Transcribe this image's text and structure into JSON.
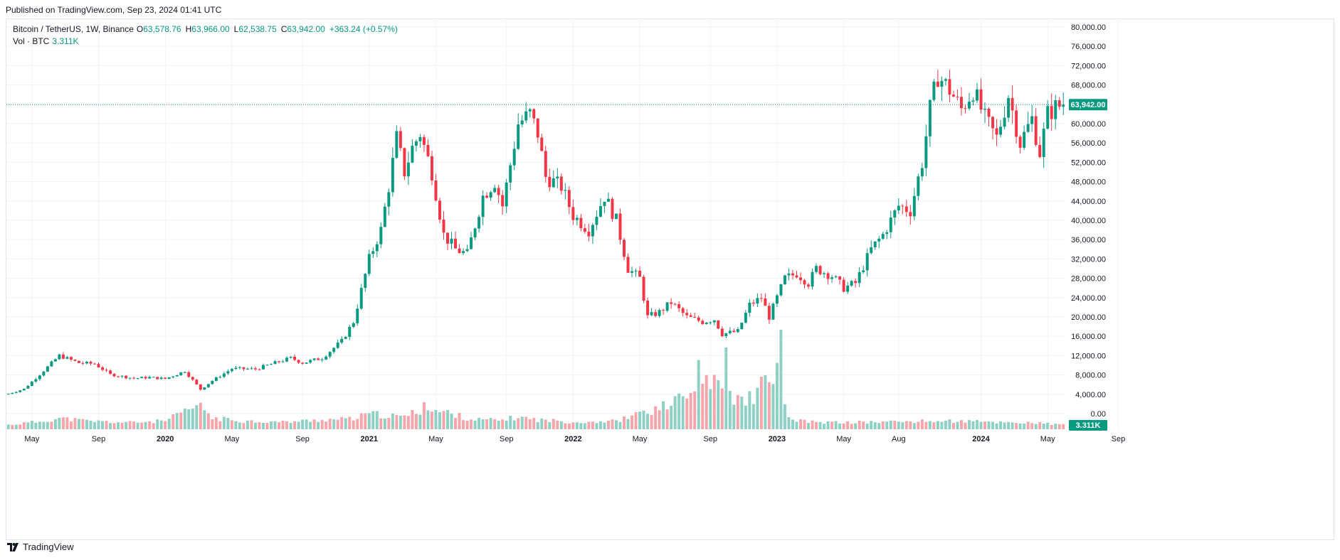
{
  "header": {
    "published": "Published on TradingView.com, Sep 23, 2024 01:41 UTC"
  },
  "legend": {
    "symbol": "Bitcoin / TetherUS, 1W, Binance",
    "open_label": "O",
    "open": "63,578.76",
    "high_label": "H",
    "high": "63,966.00",
    "low_label": "L",
    "low": "62,538.75",
    "close_label": "C",
    "close": "63,942.00",
    "change": "+363.24 (+0.57%)",
    "vol_label": "Vol · BTC",
    "vol_value": "3.311K"
  },
  "footer": {
    "brand": "TradingView"
  },
  "colors": {
    "up": "#089981",
    "down": "#f23645",
    "vol_up": "#8ed1c4",
    "vol_down": "#f6a5ab",
    "grid": "#f0f3fa",
    "last_price": "#089981"
  },
  "chart_data": {
    "type": "candlestick",
    "title": "Bitcoin / TetherUS, 1W, Binance",
    "last_price": 63942,
    "last_price_label": "63,942.00",
    "last_volume_label": "3.311K",
    "ylim": [
      0,
      82000
    ],
    "y_ticks": [
      0,
      4000,
      8000,
      12000,
      16000,
      20000,
      24000,
      28000,
      32000,
      36000,
      40000,
      44000,
      48000,
      52000,
      56000,
      60000,
      64000,
      68000,
      72000,
      76000,
      80000
    ],
    "y_tick_labels": [
      "0.00",
      "4,000.00",
      "8,000.00",
      "12,000.00",
      "16,000.00",
      "20,000.00",
      "24,000.00",
      "28,000.00",
      "32,000.00",
      "36,000.00",
      "40,000.00",
      "44,000.00",
      "48,000.00",
      "52,000.00",
      "56,000.00",
      "60,000.00",
      "64,000.00",
      "68,000.00",
      "72,000.00",
      "76,000.00",
      "80,000.00"
    ],
    "x_ticks": [
      {
        "label": "May",
        "week": 6,
        "year": false
      },
      {
        "label": "Sep",
        "week": 23,
        "year": false
      },
      {
        "label": "2020",
        "week": 40,
        "year": true
      },
      {
        "label": "May",
        "week": 57,
        "year": false
      },
      {
        "label": "Sep",
        "week": 75,
        "year": false
      },
      {
        "label": "2021",
        "week": 92,
        "year": true
      },
      {
        "label": "May",
        "week": 109,
        "year": false
      },
      {
        "label": "Sep",
        "week": 127,
        "year": false
      },
      {
        "label": "2022",
        "week": 144,
        "year": true
      },
      {
        "label": "May",
        "week": 161,
        "year": false
      },
      {
        "label": "Sep",
        "week": 179,
        "year": false
      },
      {
        "label": "2023",
        "week": 196,
        "year": true
      },
      {
        "label": "May",
        "week": 213,
        "year": false
      },
      {
        "label": "Aug",
        "week": 227,
        "year": false
      },
      {
        "label": "2024",
        "week": 248,
        "year": true
      },
      {
        "label": "May",
        "week": 265,
        "year": false
      },
      {
        "label": "Sep",
        "week": 283,
        "year": false
      }
    ],
    "anchors": [
      [
        0,
        4100
      ],
      [
        4,
        5100
      ],
      [
        8,
        8100
      ],
      [
        13,
        12000
      ],
      [
        18,
        10500
      ],
      [
        22,
        10300
      ],
      [
        26,
        8100
      ],
      [
        32,
        7300
      ],
      [
        36,
        7500
      ],
      [
        40,
        7200
      ],
      [
        45,
        8800
      ],
      [
        49,
        5000
      ],
      [
        52,
        6800
      ],
      [
        57,
        9300
      ],
      [
        63,
        9200
      ],
      [
        68,
        10500
      ],
      [
        72,
        11500
      ],
      [
        75,
        10500
      ],
      [
        80,
        11500
      ],
      [
        85,
        15000
      ],
      [
        88,
        19000
      ],
      [
        92,
        32000
      ],
      [
        95,
        38000
      ],
      [
        97,
        47000
      ],
      [
        99,
        57000
      ],
      [
        101,
        50000
      ],
      [
        103,
        55000
      ],
      [
        105,
        58000
      ],
      [
        108,
        50000
      ],
      [
        111,
        37000
      ],
      [
        114,
        34000
      ],
      [
        117,
        33000
      ],
      [
        121,
        45000
      ],
      [
        124,
        48000
      ],
      [
        126,
        43000
      ],
      [
        130,
        60000
      ],
      [
        133,
        62000
      ],
      [
        135,
        58000
      ],
      [
        137,
        49000
      ],
      [
        141,
        47000
      ],
      [
        144,
        41000
      ],
      [
        148,
        38000
      ],
      [
        152,
        45000
      ],
      [
        155,
        40000
      ],
      [
        158,
        30000
      ],
      [
        161,
        28000
      ],
      [
        163,
        20000
      ],
      [
        166,
        21000
      ],
      [
        169,
        23000
      ],
      [
        173,
        20000
      ],
      [
        177,
        19000
      ],
      [
        180,
        19500
      ],
      [
        182,
        16500
      ],
      [
        186,
        17000
      ],
      [
        189,
        22500
      ],
      [
        192,
        24000
      ],
      [
        194,
        20000
      ],
      [
        198,
        28000
      ],
      [
        201,
        29000
      ],
      [
        204,
        27000
      ],
      [
        206,
        30000
      ],
      [
        210,
        28500
      ],
      [
        213,
        26000
      ],
      [
        216,
        27000
      ],
      [
        220,
        34000
      ],
      [
        223,
        37000
      ],
      [
        227,
        43000
      ],
      [
        230,
        42000
      ],
      [
        233,
        52000
      ],
      [
        235,
        63000
      ],
      [
        237,
        70000
      ],
      [
        240,
        67000
      ],
      [
        243,
        63000
      ],
      [
        246,
        67000
      ],
      [
        249,
        61000
      ],
      [
        252,
        57000
      ],
      [
        255,
        66000
      ],
      [
        258,
        56000
      ],
      [
        261,
        61000
      ],
      [
        263,
        54000
      ],
      [
        265,
        62000
      ],
      [
        267,
        63400
      ],
      [
        269,
        63942
      ]
    ],
    "volume_anchors": [
      [
        0,
        800
      ],
      [
        8,
        1400
      ],
      [
        13,
        2000
      ],
      [
        20,
        1500
      ],
      [
        30,
        1200
      ],
      [
        40,
        1500
      ],
      [
        49,
        4500
      ],
      [
        52,
        2000
      ],
      [
        60,
        1500
      ],
      [
        70,
        1300
      ],
      [
        80,
        1700
      ],
      [
        88,
        1900
      ],
      [
        92,
        2800
      ],
      [
        100,
        2200
      ],
      [
        106,
        3500
      ],
      [
        112,
        3000
      ],
      [
        118,
        1800
      ],
      [
        125,
        1600
      ],
      [
        130,
        2200
      ],
      [
        135,
        1700
      ],
      [
        145,
        1300
      ],
      [
        155,
        1500
      ],
      [
        160,
        2500
      ],
      [
        165,
        3500
      ],
      [
        170,
        5000
      ],
      [
        175,
        6500
      ],
      [
        178,
        9000
      ],
      [
        182,
        7000
      ],
      [
        186,
        5000
      ],
      [
        190,
        6000
      ],
      [
        193,
        8000
      ],
      [
        196,
        12000
      ],
      [
        198,
        4000
      ],
      [
        200,
        1500
      ],
      [
        210,
        1200
      ],
      [
        220,
        1300
      ],
      [
        230,
        1400
      ],
      [
        240,
        1500
      ],
      [
        250,
        1300
      ],
      [
        260,
        1200
      ],
      [
        269,
        800
      ]
    ],
    "volume_spikes": [
      [
        49,
        4800
      ],
      [
        106,
        4900
      ],
      [
        161,
        3200
      ],
      [
        170,
        6000
      ],
      [
        176,
        12500
      ],
      [
        178,
        9800
      ],
      [
        183,
        14800
      ],
      [
        186,
        6200
      ],
      [
        192,
        9500
      ],
      [
        194,
        8500
      ],
      [
        196,
        12000
      ],
      [
        197,
        18000
      ]
    ]
  }
}
